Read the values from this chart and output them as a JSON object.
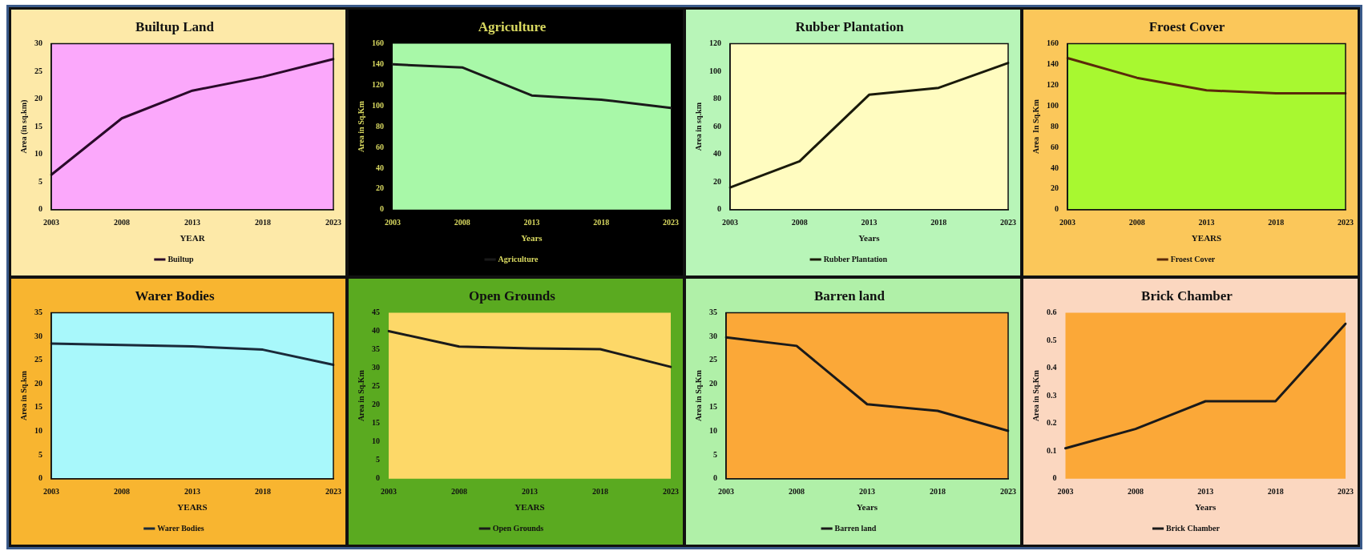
{
  "chart_data": [
    {
      "type": "line",
      "title": "Builtup Land",
      "xlabel": "YEAR",
      "ylabel": "Area (in sq.km)",
      "categories": [
        "2003",
        "2008",
        "2013",
        "2018",
        "2023"
      ],
      "series": [
        {
          "name": "Builtup",
          "color": "#2a0a2a",
          "values": [
            6.3,
            16.5,
            21.5,
            24,
            27.2
          ]
        }
      ],
      "ylim": [
        0,
        30
      ],
      "yticks": [
        0,
        5,
        10,
        15,
        20,
        25,
        30
      ],
      "grid": false,
      "legend": "bottom",
      "marker": "none",
      "line_style": "solid"
    },
    {
      "type": "line",
      "title": "Agriculture",
      "xlabel": "Years",
      "ylabel": "Area in Sq.Km",
      "categories": [
        "2003",
        "2008",
        "2013",
        "2018",
        "2023"
      ],
      "series": [
        {
          "name": "Agriculture",
          "color": "#1a1a1a",
          "values": [
            140,
            137,
            110,
            106,
            98
          ]
        }
      ],
      "ylim": [
        0,
        160
      ],
      "yticks": [
        0,
        20,
        40,
        60,
        80,
        100,
        120,
        140,
        160
      ],
      "grid": false,
      "legend": "bottom",
      "marker": "none",
      "line_style": "solid"
    },
    {
      "type": "line",
      "title": "Rubber Plantation",
      "xlabel": "Years",
      "ylabel": "Area in sq.km",
      "categories": [
        "2003",
        "2008",
        "2013",
        "2018",
        "2023"
      ],
      "series": [
        {
          "name": "Rubber Plantation",
          "color": "#1a1a0a",
          "values": [
            16,
            35,
            83,
            88,
            106
          ]
        }
      ],
      "ylim": [
        0,
        120
      ],
      "yticks": [
        0,
        20,
        40,
        60,
        80,
        100,
        120
      ],
      "grid": false,
      "legend": "bottom",
      "marker": "none",
      "line_style": "solid"
    },
    {
      "type": "line",
      "title": "Froest Cover",
      "xlabel": "YEARS",
      "ylabel": "Area  In Sq.Km",
      "categories": [
        "2003",
        "2008",
        "2013",
        "2018",
        "2023"
      ],
      "series": [
        {
          "name": "Froest Cover",
          "color": "#5a2a0a",
          "values": [
            146,
            127,
            115,
            112,
            112
          ]
        }
      ],
      "ylim": [
        0,
        160
      ],
      "yticks": [
        0,
        20,
        40,
        60,
        80,
        100,
        120,
        140,
        160
      ],
      "grid": false,
      "legend": "bottom",
      "marker": "none",
      "line_style": "solid"
    },
    {
      "type": "line",
      "title": "Warer Bodies",
      "xlabel": "YEARS",
      "ylabel": "Area in Sq.km",
      "categories": [
        "2003",
        "2008",
        "2013",
        "2018",
        "2023"
      ],
      "series": [
        {
          "name": "Warer Bodies",
          "color": "#1a2a3a",
          "values": [
            28.5,
            28.2,
            27.9,
            27.2,
            24
          ]
        }
      ],
      "ylim": [
        0,
        35
      ],
      "yticks": [
        0,
        5,
        10,
        15,
        20,
        25,
        30,
        35
      ],
      "grid": false,
      "legend": "bottom",
      "marker": "none",
      "line_style": "solid"
    },
    {
      "type": "line",
      "title": "Open Grounds",
      "xlabel": "YEARS",
      "ylabel": "Area in Sq.Km",
      "categories": [
        "2003",
        "2008",
        "2013",
        "2018",
        "2023"
      ],
      "series": [
        {
          "name": "Open Grounds",
          "color": "#1a1a1a",
          "values": [
            40,
            35.8,
            35.3,
            35.1,
            30.3
          ]
        }
      ],
      "ylim": [
        0,
        45
      ],
      "yticks": [
        0,
        5,
        10,
        15,
        20,
        25,
        30,
        35,
        40,
        45
      ],
      "grid": false,
      "legend": "bottom",
      "marker": "none",
      "line_style": "solid"
    },
    {
      "type": "line",
      "title": "Barren land",
      "xlabel": "Years",
      "ylabel": "Area in Sq.Km",
      "categories": [
        "2003",
        "2008",
        "2013",
        "2018",
        "2023"
      ],
      "series": [
        {
          "name": "Barren land",
          "color": "#1a1a1a",
          "values": [
            29.8,
            28,
            15.7,
            14.3,
            10.1
          ]
        }
      ],
      "ylim": [
        0,
        35
      ],
      "yticks": [
        0,
        5,
        10,
        15,
        20,
        25,
        30,
        35
      ],
      "grid": false,
      "legend": "bottom",
      "marker": "none",
      "line_style": "solid"
    },
    {
      "type": "line",
      "title": "Brick Chamber",
      "xlabel": "Years",
      "ylabel": "Area in Sq.Km",
      "categories": [
        "2003",
        "2008",
        "2013",
        "2018",
        "2023"
      ],
      "series": [
        {
          "name": "Brick Chamber",
          "color": "#1a1a1a",
          "values": [
            0.11,
            0.18,
            0.28,
            0.28,
            0.56
          ]
        }
      ],
      "ylim": [
        0,
        0.6
      ],
      "yticks": [
        0,
        0.1,
        0.2,
        0.3,
        0.4,
        0.5,
        0.6
      ],
      "grid": false,
      "legend": "bottom",
      "marker": "none",
      "line_style": "solid"
    }
  ]
}
